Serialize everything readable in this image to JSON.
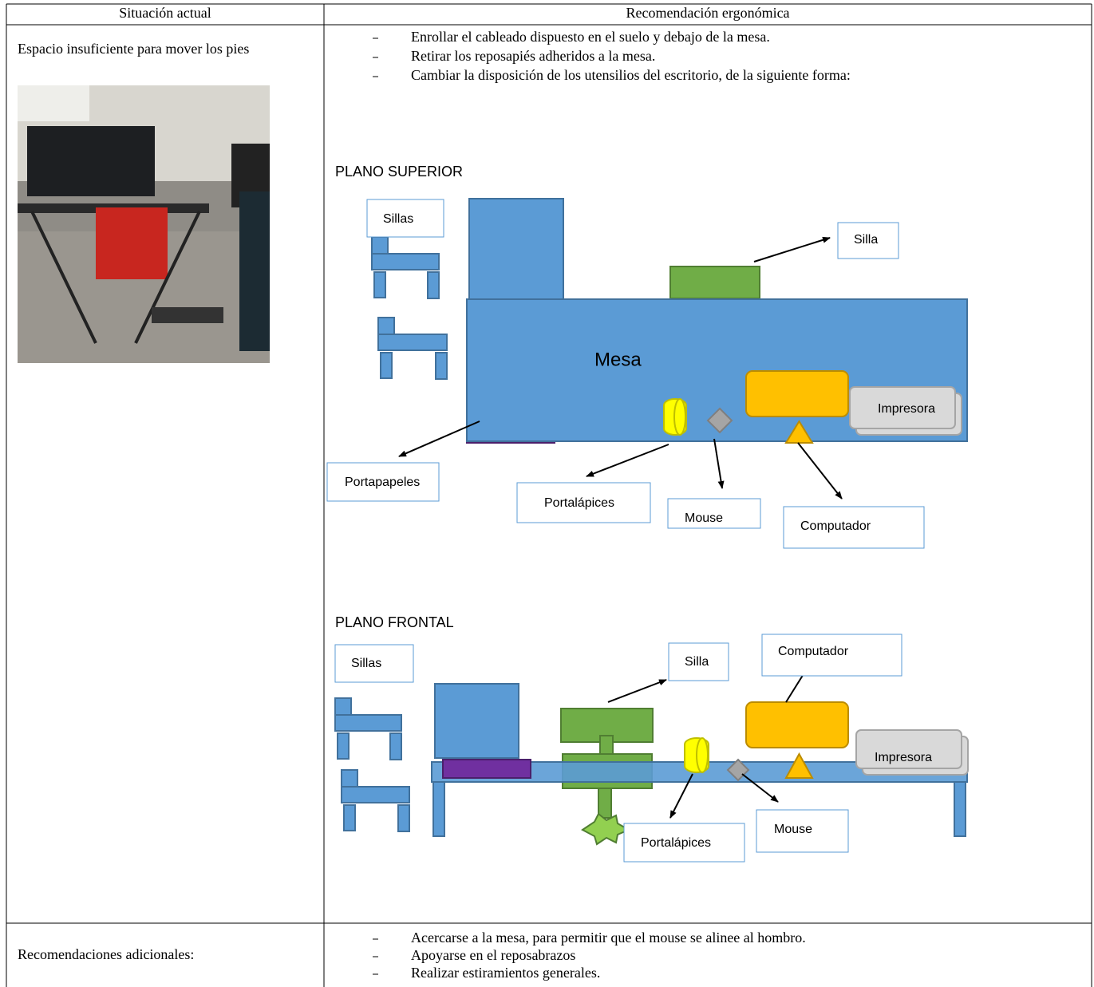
{
  "header": {
    "columns": [
      "Situación actual",
      "Recomendación ergonómica"
    ]
  },
  "table": {
    "rows": [
      {
        "situation": "Espacio insuficiente para mover los pies",
        "recommendations": [
          "Enrollar el cableado dispuesto en el suelo y debajo de la mesa.",
          "Retirar los reposapiés  adheridos a la mesa.",
          "Cambiar la disposición de los utensilios del escritorio, de la siguiente forma:"
        ]
      },
      {
        "situation": "Recomendaciones adicionales:",
        "recommendations": [
          "Acercarse a la mesa, para permitir que el mouse se alinee al hombro.",
          "Apoyarse en el reposabrazos",
          "Realizar estiramientos generales."
        ]
      }
    ]
  },
  "diagram": {
    "top_plan": {
      "title": "PLANO SUPERIOR",
      "labels": {
        "sillas": "Sillas",
        "silla": "Silla",
        "mesa": "Mesa",
        "impresora": "Impresora",
        "portapapeles": "Portapapeles",
        "portalapices": "Portalápices",
        "mouse": "Mouse",
        "computador": "Computador"
      }
    },
    "front_plan": {
      "title": "PLANO FRONTAL",
      "labels": {
        "sillas": "Sillas",
        "silla": "Silla",
        "computador": "Computador",
        "impresora": "Impresora",
        "portalapices": "Portalápices",
        "mouse": "Mouse"
      }
    }
  }
}
